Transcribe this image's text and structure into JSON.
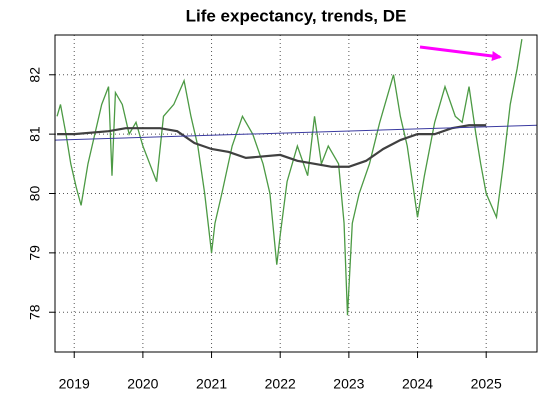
{
  "chart_data": {
    "type": "line",
    "title": "Life expectancy, trends, DE",
    "xlim": [
      2018.72,
      2025.74
    ],
    "ylim": [
      77.33,
      82.67
    ],
    "xticks": [
      2019,
      2020,
      2021,
      2022,
      2023,
      2024,
      2025
    ],
    "yticks": [
      78,
      79,
      80,
      81,
      82
    ],
    "grid": true,
    "series": [
      {
        "color": "#4c9a44",
        "x": [
          2018.75,
          2018.8,
          2018.88,
          2018.95,
          2019.03,
          2019.1,
          2019.2,
          2019.3,
          2019.4,
          2019.5,
          2019.55,
          2019.6,
          2019.7,
          2019.8,
          2019.9,
          2020.0,
          2020.1,
          2020.2,
          2020.3,
          2020.45,
          2020.6,
          2020.7,
          2020.8,
          2020.9,
          2021.0,
          2021.05,
          2021.15,
          2021.3,
          2021.45,
          2021.6,
          2021.75,
          2021.85,
          2021.95,
          2022.0,
          2022.1,
          2022.25,
          2022.4,
          2022.5,
          2022.6,
          2022.7,
          2022.85,
          2022.93,
          2022.98,
          2023.05,
          2023.15,
          2023.3,
          2023.45,
          2023.55,
          2023.65,
          2023.75,
          2023.85,
          2023.95,
          2024.0,
          2024.1,
          2024.25,
          2024.4,
          2024.55,
          2024.65,
          2024.75,
          2024.85,
          2024.92,
          2025.0,
          2025.15,
          2025.25,
          2025.35,
          2025.45,
          2025.52
        ],
        "values": [
          81.3,
          81.5,
          81.0,
          80.5,
          80.1,
          79.8,
          80.5,
          81.0,
          81.5,
          81.8,
          80.3,
          81.7,
          81.5,
          81.0,
          81.2,
          80.8,
          80.5,
          80.2,
          81.3,
          81.5,
          81.9,
          81.3,
          80.8,
          80.0,
          79.0,
          79.5,
          80.0,
          80.8,
          81.3,
          81.0,
          80.5,
          80.0,
          78.8,
          79.3,
          80.2,
          80.8,
          80.3,
          81.3,
          80.5,
          80.8,
          80.5,
          79.5,
          77.95,
          79.5,
          80.0,
          80.5,
          81.2,
          81.6,
          82.0,
          81.3,
          80.8,
          80.0,
          79.6,
          80.3,
          81.2,
          81.8,
          81.3,
          81.2,
          81.8,
          81.0,
          80.5,
          80.0,
          79.6,
          80.5,
          81.5,
          82.1,
          82.6
        ]
      },
      {
        "color": "#404040",
        "x": [
          2018.75,
          2019.0,
          2019.5,
          2019.75,
          2020.0,
          2020.25,
          2020.5,
          2020.75,
          2021.0,
          2021.25,
          2021.5,
          2022.0,
          2022.25,
          2022.5,
          2022.75,
          2023.0,
          2023.25,
          2023.5,
          2023.75,
          2024.0,
          2024.25,
          2024.5,
          2024.75,
          2025.0
        ],
        "values": [
          81.0,
          81.0,
          81.05,
          81.1,
          81.1,
          81.1,
          81.05,
          80.85,
          80.75,
          80.7,
          80.6,
          80.65,
          80.55,
          80.5,
          80.45,
          80.45,
          80.55,
          80.75,
          80.9,
          81.0,
          81.0,
          81.1,
          81.15,
          81.15
        ]
      },
      {
        "color": "#3a3aa0",
        "x": [
          2018.72,
          2025.74
        ],
        "values": [
          80.9,
          81.15
        ]
      }
    ]
  }
}
